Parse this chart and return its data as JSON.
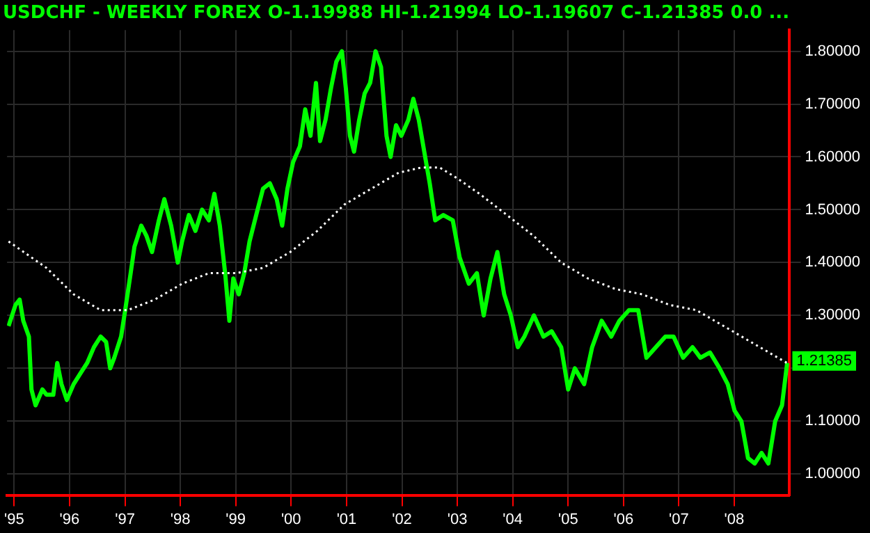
{
  "chart_data": {
    "type": "line",
    "title": "USDCHF - WEEKLY FOREX O-1.19988 HI-1.21994 LO-1.19607 C-1.21385 0.0 ...",
    "legend": false,
    "grid": true,
    "marker": "none",
    "xlim": [
      "1994-11-15",
      "2008-12-31"
    ],
    "ylim": [
      0.96,
      1.84
    ],
    "xticks": [
      {
        "value": "1995-01-01",
        "label": "'95"
      },
      {
        "value": "1996-01-01",
        "label": "'96"
      },
      {
        "value": "1997-01-01",
        "label": "'97"
      },
      {
        "value": "1998-01-01",
        "label": "'98"
      },
      {
        "value": "1999-01-01",
        "label": "'99"
      },
      {
        "value": "2000-01-01",
        "label": "'00"
      },
      {
        "value": "2001-01-01",
        "label": "'01"
      },
      {
        "value": "2002-01-01",
        "label": "'02"
      },
      {
        "value": "2003-01-01",
        "label": "'03"
      },
      {
        "value": "2004-01-01",
        "label": "'04"
      },
      {
        "value": "2005-01-01",
        "label": "'05"
      },
      {
        "value": "2006-01-01",
        "label": "'06"
      },
      {
        "value": "2007-01-01",
        "label": "'07"
      },
      {
        "value": "2008-01-01",
        "label": "'08"
      }
    ],
    "yticks": [
      {
        "value": 1.0,
        "label": "1.00000"
      },
      {
        "value": 1.1,
        "label": "1.10000"
      },
      {
        "value": 1.2,
        "label": null
      },
      {
        "value": 1.3,
        "label": "1.30000"
      },
      {
        "value": 1.4,
        "label": "1.40000"
      },
      {
        "value": 1.5,
        "label": "1.50000"
      },
      {
        "value": 1.6,
        "label": "1.60000"
      },
      {
        "value": 1.7,
        "label": "1.70000"
      },
      {
        "value": 1.8,
        "label": "1.80000"
      }
    ],
    "annotations": [
      {
        "text": "1.21385",
        "x": "2008-12-15",
        "y": 1.21385
      }
    ],
    "series": [
      {
        "color": "#00ff00",
        "line_style": "solid",
        "x": [
          "1994-11-25",
          "1995-01-10",
          "1995-02-06",
          "1995-03-02",
          "1995-04-08",
          "1995-04-25",
          "1995-05-22",
          "1995-07-06",
          "1995-08-02",
          "1995-09-16",
          "1995-10-12",
          "1995-11-09",
          "1995-12-14",
          "1996-01-28",
          "1996-03-12",
          "1996-04-26",
          "1996-06-10",
          "1996-07-24",
          "1996-08-29",
          "1996-09-25",
          "1996-10-22",
          "1996-12-06",
          "1997-01-02",
          "1997-02-07",
          "1997-03-04",
          "1997-04-18",
          "1997-05-23",
          "1997-06-28",
          "1997-08-12",
          "1997-09-17",
          "1997-11-01",
          "1997-12-15",
          "1998-01-12",
          "1998-02-26",
          "1998-04-10",
          "1998-05-24",
          "1998-07-08",
          "1998-08-13",
          "1998-09-18",
          "1998-10-23",
          "1998-11-20",
          "1998-12-16",
          "1999-01-21",
          "1999-02-26",
          "1999-04-02",
          "1999-05-16",
          "1999-06-30",
          "1999-08-14",
          "1999-09-28",
          "1999-11-03",
          "1999-12-08",
          "2000-01-14",
          "2000-02-28",
          "2000-04-03",
          "2000-05-08",
          "2000-06-13",
          "2000-07-10",
          "2000-08-15",
          "2000-09-20",
          "2000-10-25",
          "2000-12-01",
          "2000-12-27",
          "2001-01-23",
          "2001-02-19",
          "2001-03-25",
          "2001-04-30",
          "2001-06-05",
          "2001-07-11",
          "2001-08-16",
          "2001-09-21",
          "2001-10-18",
          "2001-11-23",
          "2001-12-28",
          "2002-02-12",
          "2002-03-17",
          "2002-04-22",
          "2002-05-28",
          "2002-07-03",
          "2002-08-08",
          "2002-10-01",
          "2002-12-02",
          "2003-01-16",
          "2003-03-18",
          "2003-05-10",
          "2003-06-24",
          "2003-08-08",
          "2003-09-22",
          "2003-11-06",
          "2003-12-20",
          "2004-02-04",
          "2004-03-18",
          "2004-05-20",
          "2004-07-22",
          "2004-09-14",
          "2004-11-16",
          "2005-01-01",
          "2005-02-14",
          "2005-04-16",
          "2005-06-08",
          "2005-08-10",
          "2005-10-12",
          "2005-12-05",
          "2006-02-06",
          "2006-04-08",
          "2006-06-01",
          "2006-08-02",
          "2006-10-04",
          "2006-11-27",
          "2007-01-29",
          "2007-04-01",
          "2007-05-23",
          "2007-07-25",
          "2007-09-26",
          "2007-11-19",
          "2008-01-03",
          "2008-02-17",
          "2008-04-01",
          "2008-05-15",
          "2008-06-29",
          "2008-08-13",
          "2008-09-27",
          "2008-11-11",
          "2008-12-15"
        ],
        "values": [
          1.28,
          1.32,
          1.33,
          1.29,
          1.26,
          1.16,
          1.13,
          1.16,
          1.15,
          1.15,
          1.21,
          1.17,
          1.14,
          1.17,
          1.19,
          1.21,
          1.24,
          1.26,
          1.25,
          1.2,
          1.22,
          1.26,
          1.31,
          1.38,
          1.43,
          1.47,
          1.45,
          1.42,
          1.48,
          1.52,
          1.47,
          1.4,
          1.44,
          1.49,
          1.46,
          1.5,
          1.48,
          1.53,
          1.47,
          1.38,
          1.29,
          1.37,
          1.34,
          1.38,
          1.44,
          1.49,
          1.54,
          1.55,
          1.52,
          1.47,
          1.54,
          1.59,
          1.62,
          1.69,
          1.64,
          1.74,
          1.63,
          1.67,
          1.73,
          1.78,
          1.8,
          1.73,
          1.64,
          1.61,
          1.67,
          1.72,
          1.74,
          1.8,
          1.77,
          1.64,
          1.6,
          1.66,
          1.64,
          1.67,
          1.71,
          1.67,
          1.61,
          1.55,
          1.48,
          1.49,
          1.48,
          1.41,
          1.36,
          1.38,
          1.3,
          1.37,
          1.42,
          1.34,
          1.3,
          1.24,
          1.26,
          1.3,
          1.26,
          1.27,
          1.24,
          1.16,
          1.2,
          1.17,
          1.24,
          1.29,
          1.26,
          1.29,
          1.31,
          1.31,
          1.22,
          1.24,
          1.26,
          1.26,
          1.22,
          1.24,
          1.22,
          1.23,
          1.2,
          1.17,
          1.12,
          1.1,
          1.03,
          1.02,
          1.04,
          1.02,
          1.1,
          1.13,
          1.21
        ]
      },
      {
        "color": "#ffffff",
        "line_style": "dotted",
        "x": [
          "1994-11-25",
          "1995-08-02",
          "1996-01-28",
          "1996-07-24",
          "1997-01-19",
          "1997-07-16",
          "1998-01-12",
          "1998-07-08",
          "1999-01-04",
          "1999-06-30",
          "1999-12-26",
          "2000-06-22",
          "2000-12-18",
          "2001-06-14",
          "2001-12-10",
          "2002-05-10",
          "2002-09-06",
          "2002-12-29",
          "2003-05-28",
          "2003-11-24",
          "2004-05-20",
          "2004-11-16",
          "2005-05-12",
          "2005-11-08",
          "2006-05-04",
          "2006-10-31",
          "2007-04-27",
          "2007-10-23",
          "2008-04-19",
          "2008-10-15",
          "2008-12-15"
        ],
        "values": [
          1.44,
          1.39,
          1.34,
          1.31,
          1.31,
          1.33,
          1.36,
          1.38,
          1.38,
          1.39,
          1.42,
          1.46,
          1.51,
          1.54,
          1.57,
          1.58,
          1.58,
          1.56,
          1.53,
          1.49,
          1.45,
          1.4,
          1.37,
          1.35,
          1.34,
          1.32,
          1.31,
          1.28,
          1.25,
          1.22,
          1.21
        ]
      }
    ]
  }
}
